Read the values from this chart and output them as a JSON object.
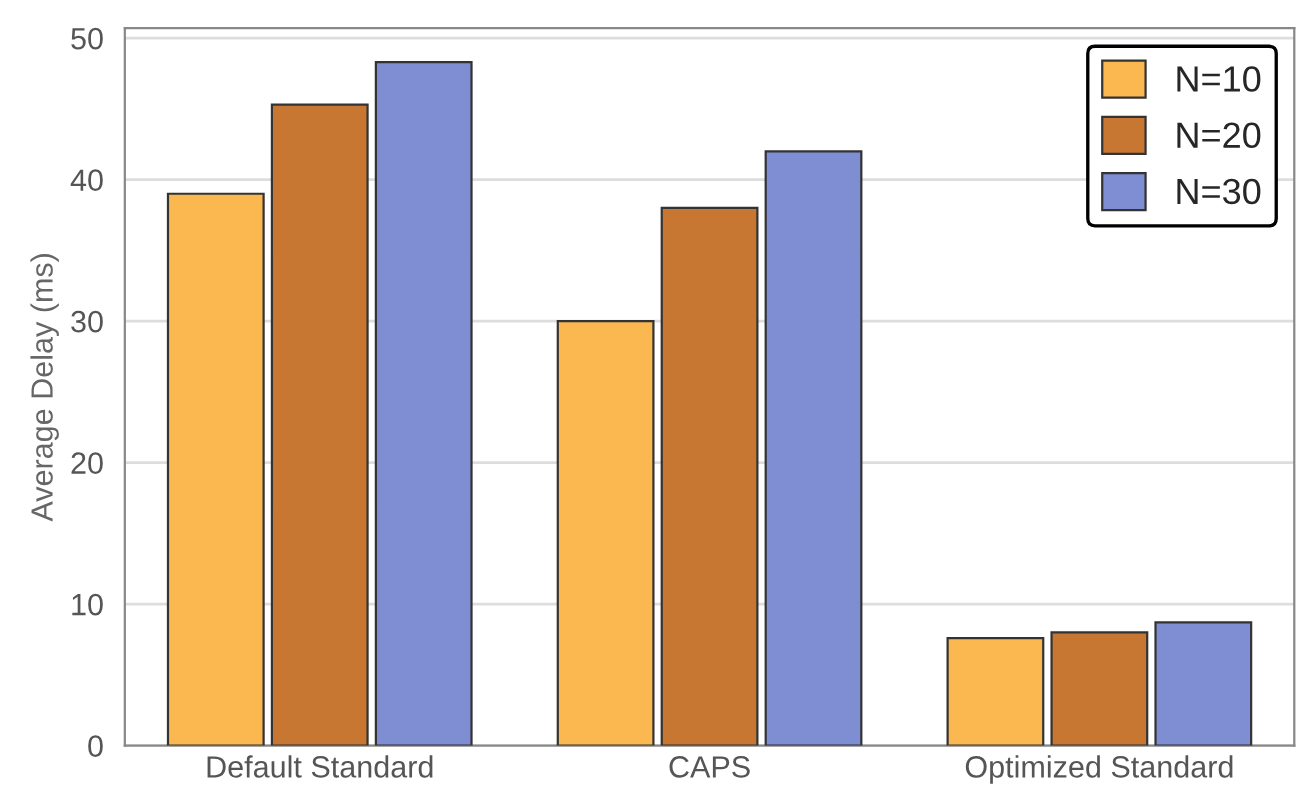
{
  "chart_data": {
    "type": "bar",
    "ylabel": "Average Delay (ms)",
    "categories": [
      "Default Standard",
      "CAPS",
      "Optimized Standard"
    ],
    "series": [
      {
        "name": "N=10",
        "color": "#fbb851",
        "values": [
          39,
          30,
          7.6
        ]
      },
      {
        "name": "N=20",
        "color": "#c87733",
        "values": [
          45.3,
          38,
          8.0
        ]
      },
      {
        "name": "N=30",
        "color": "#7f8dd3",
        "values": [
          48.3,
          42,
          8.7
        ]
      }
    ],
    "ylim": [
      0,
      50.7
    ],
    "yticks": [
      0,
      10,
      20,
      30,
      40,
      50
    ],
    "grid": "y",
    "legend": "top right"
  }
}
